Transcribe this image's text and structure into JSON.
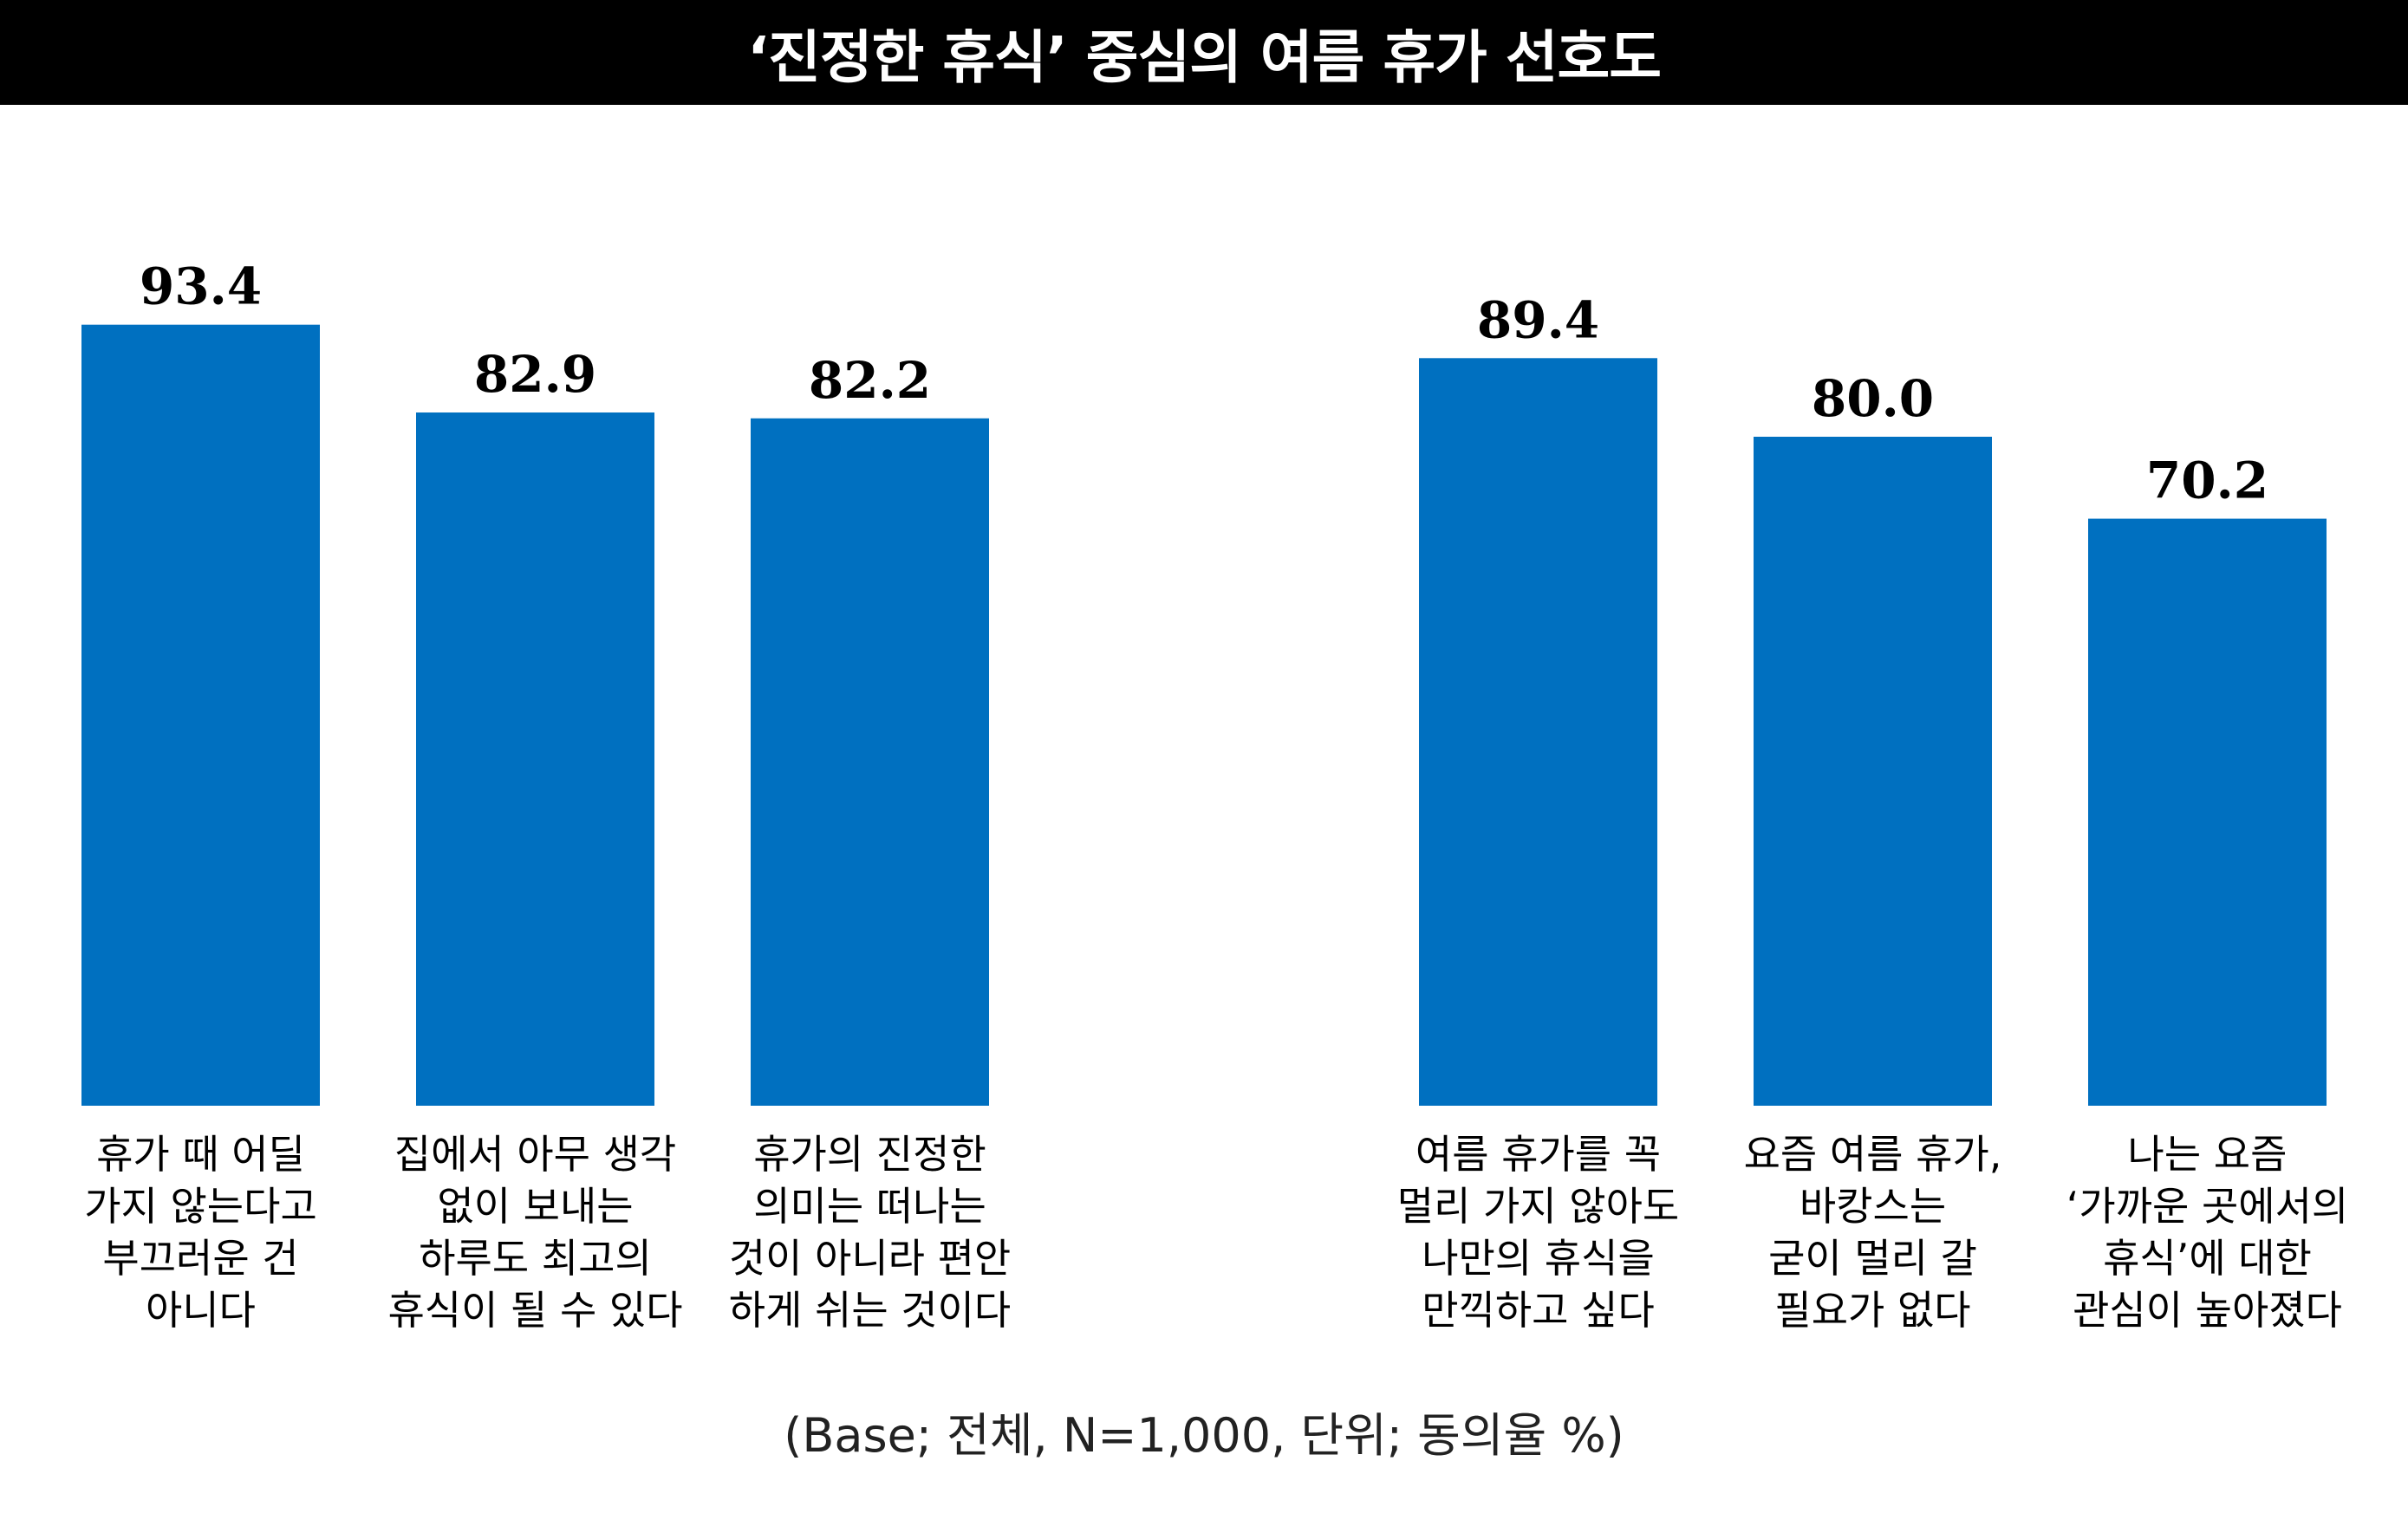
{
  "title": "‘진정한 휴식’ 중심의 여름 휴가 선호도",
  "footnote": "(Base; 전체, N=1,000, 단위; 동의율 %)",
  "bar_color": "#0070C0",
  "chart_data": {
    "type": "bar",
    "ylim": [
      0,
      100
    ],
    "grid": false,
    "groups": [
      {
        "categories": [
          [
            "휴가 때 어딜",
            "가지 않는다고",
            "부끄러운 건",
            "아니다"
          ],
          [
            "집에서 아무 생각",
            "없이 보내는",
            "하루도 최고의",
            "휴식이 될 수 있다"
          ],
          [
            "휴가의 진정한",
            "의미는 떠나는",
            "것이 아니라 편안",
            "하게 쉬는 것이다"
          ]
        ],
        "value_labels": [
          "93.4",
          "82.9",
          "82.2"
        ],
        "values": [
          93.4,
          82.9,
          82.2
        ]
      },
      {
        "categories": [
          [
            "여름 휴가를 꼭",
            "멀리 가지 않아도",
            "나만의 휴식을",
            "만끽하고 싶다"
          ],
          [
            "요즘 여름 휴가,",
            "바캉스는",
            "굳이 멀리 갈",
            "필요가 없다"
          ],
          [
            "나는 요즘",
            "‘가까운 곳에서의",
            "휴식’에 대한",
            "관심이 높아졌다"
          ]
        ],
        "value_labels": [
          "89.4",
          "80.0",
          "70.2"
        ],
        "values": [
          89.4,
          80.0,
          70.2
        ]
      }
    ]
  }
}
